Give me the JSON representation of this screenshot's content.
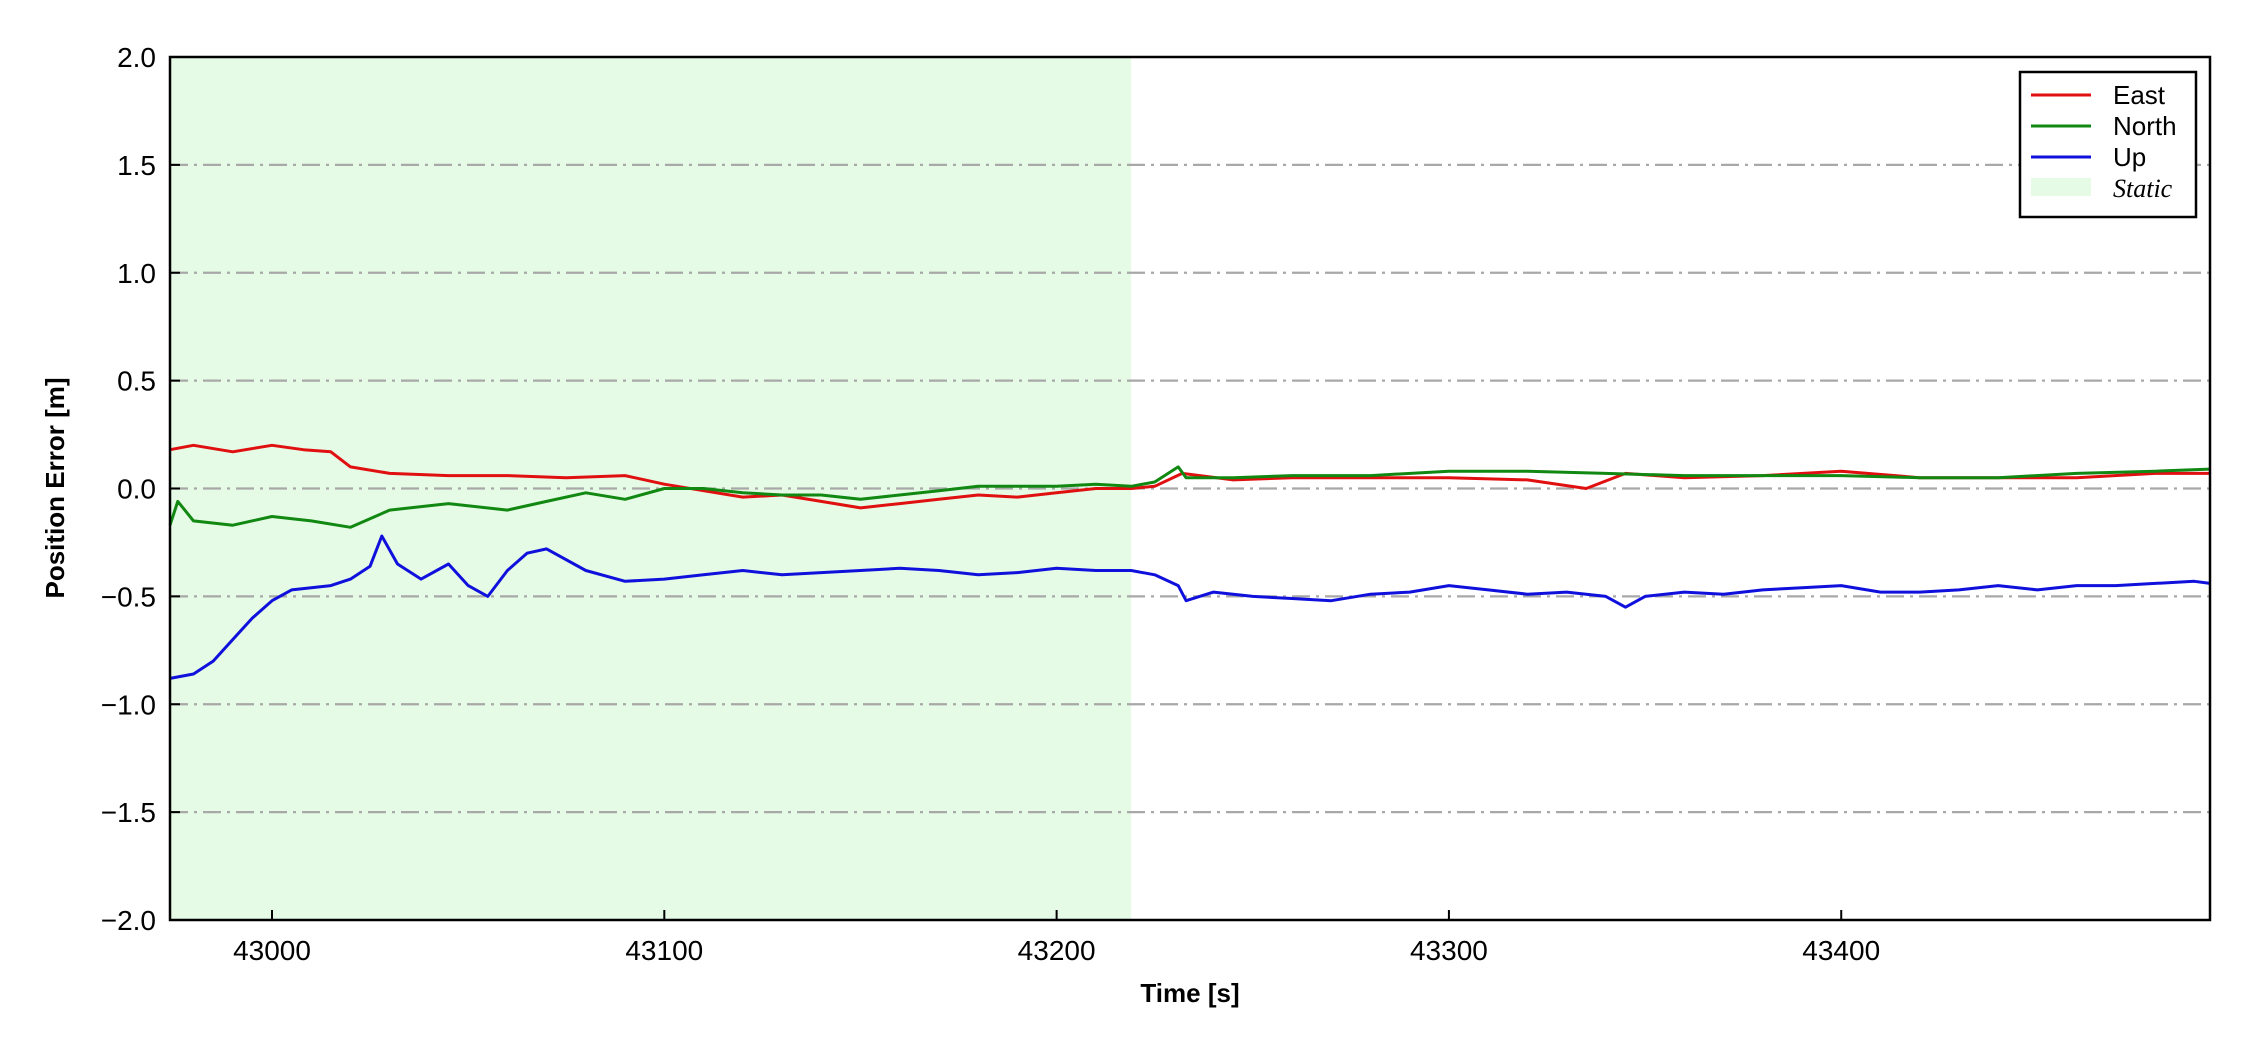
{
  "chart_data": {
    "type": "line",
    "title": "",
    "xlabel": "Time [s]",
    "ylabel": "Position Error [m]",
    "xlim": [
      42974,
      43494
    ],
    "ylim": [
      -2.0,
      2.0
    ],
    "xticks": [
      43000,
      43100,
      43200,
      43300,
      43400
    ],
    "yticks": [
      -2.0,
      -1.5,
      -1.0,
      -0.5,
      0.0,
      0.5,
      1.0,
      1.5,
      2.0
    ],
    "ytick_labels": [
      "−2.0",
      "−1.5",
      "−1.0",
      "−0.5",
      "0.0",
      "0.5",
      "1.0",
      "1.5",
      "2.0"
    ],
    "grid": "horizontal dash-dot",
    "legend": "top-right",
    "static_region": {
      "name": "Static",
      "x": [
        42974,
        43219
      ],
      "color": "#e6fbe6"
    },
    "series": [
      {
        "name": "East",
        "color": "#e01010",
        "x": [
          42974,
          42980,
          42990,
          43000,
          43008,
          43015,
          43020,
          43030,
          43045,
          43060,
          43075,
          43090,
          43100,
          43110,
          43120,
          43130,
          43140,
          43150,
          43160,
          43170,
          43180,
          43190,
          43200,
          43210,
          43219,
          43225,
          43232,
          43245,
          43260,
          43280,
          43300,
          43320,
          43335,
          43345,
          43360,
          43380,
          43400,
          43420,
          43440,
          43460,
          43480,
          43494
        ],
        "y": [
          0.18,
          0.2,
          0.17,
          0.2,
          0.18,
          0.17,
          0.1,
          0.07,
          0.06,
          0.06,
          0.05,
          0.06,
          0.02,
          -0.01,
          -0.04,
          -0.03,
          -0.06,
          -0.09,
          -0.07,
          -0.05,
          -0.03,
          -0.04,
          -0.02,
          0.0,
          0.0,
          0.01,
          0.07,
          0.04,
          0.05,
          0.05,
          0.05,
          0.04,
          0.0,
          0.07,
          0.05,
          0.06,
          0.08,
          0.05,
          0.05,
          0.05,
          0.07,
          0.07
        ]
      },
      {
        "name": "North",
        "color": "#118811",
        "x": [
          42974,
          42976,
          42980,
          42990,
          43000,
          43010,
          43020,
          43030,
          43045,
          43060,
          43070,
          43080,
          43090,
          43100,
          43110,
          43120,
          43130,
          43140,
          43150,
          43160,
          43170,
          43180,
          43190,
          43200,
          43210,
          43219,
          43225,
          43231,
          43233,
          43245,
          43260,
          43280,
          43300,
          43320,
          43340,
          43360,
          43380,
          43400,
          43420,
          43440,
          43460,
          43480,
          43494
        ],
        "y": [
          -0.17,
          -0.06,
          -0.15,
          -0.17,
          -0.13,
          -0.15,
          -0.18,
          -0.1,
          -0.07,
          -0.1,
          -0.06,
          -0.02,
          -0.05,
          0.0,
          0.0,
          -0.02,
          -0.03,
          -0.03,
          -0.05,
          -0.03,
          -0.01,
          0.01,
          0.01,
          0.01,
          0.02,
          0.01,
          0.03,
          0.1,
          0.05,
          0.05,
          0.06,
          0.06,
          0.08,
          0.08,
          0.07,
          0.06,
          0.06,
          0.06,
          0.05,
          0.05,
          0.07,
          0.08,
          0.09
        ]
      },
      {
        "name": "Up",
        "color": "#1010dd",
        "x": [
          42974,
          42980,
          42985,
          42990,
          42995,
          43000,
          43005,
          43010,
          43015,
          43020,
          43025,
          43028,
          43032,
          43038,
          43045,
          43050,
          43055,
          43060,
          43065,
          43070,
          43080,
          43090,
          43100,
          43110,
          43120,
          43130,
          43140,
          43150,
          43160,
          43170,
          43180,
          43190,
          43200,
          43210,
          43219,
          43225,
          43231,
          43233,
          43240,
          43250,
          43260,
          43270,
          43280,
          43290,
          43300,
          43310,
          43320,
          43330,
          43340,
          43345,
          43350,
          43360,
          43370,
          43380,
          43390,
          43400,
          43410,
          43420,
          43430,
          43440,
          43450,
          43460,
          43470,
          43480,
          43490,
          43494
        ],
        "y": [
          -0.88,
          -0.86,
          -0.8,
          -0.7,
          -0.6,
          -0.52,
          -0.47,
          -0.46,
          -0.45,
          -0.42,
          -0.36,
          -0.22,
          -0.35,
          -0.42,
          -0.35,
          -0.45,
          -0.5,
          -0.38,
          -0.3,
          -0.28,
          -0.38,
          -0.43,
          -0.42,
          -0.4,
          -0.38,
          -0.4,
          -0.39,
          -0.38,
          -0.37,
          -0.38,
          -0.4,
          -0.39,
          -0.37,
          -0.38,
          -0.38,
          -0.4,
          -0.45,
          -0.52,
          -0.48,
          -0.5,
          -0.51,
          -0.52,
          -0.49,
          -0.48,
          -0.45,
          -0.47,
          -0.49,
          -0.48,
          -0.5,
          -0.55,
          -0.5,
          -0.48,
          -0.49,
          -0.47,
          -0.46,
          -0.45,
          -0.48,
          -0.48,
          -0.47,
          -0.45,
          -0.47,
          -0.45,
          -0.45,
          -0.44,
          -0.43,
          -0.44
        ]
      }
    ]
  }
}
